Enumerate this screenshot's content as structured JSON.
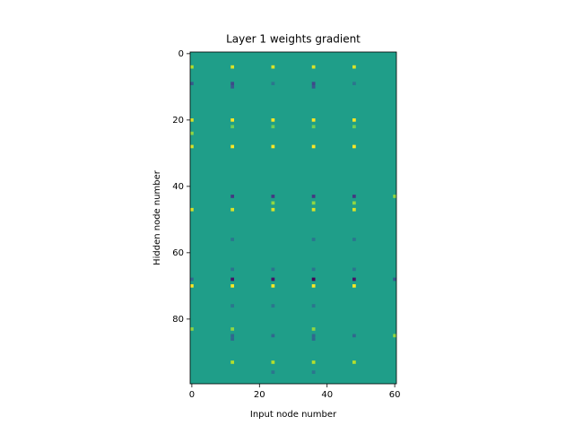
{
  "chart_data": {
    "type": "heatmap",
    "title": "Layer 1 weights gradient",
    "x_label": "Input node number",
    "y_label": "Hidden node number",
    "colormap": "viridis",
    "clim": [
      -1,
      0.8
    ],
    "xlim": [
      -0.5,
      60.5
    ],
    "ylim": [
      99.5,
      -0.5
    ],
    "xticks": [
      0,
      20,
      40,
      60
    ],
    "yticks": [
      0,
      20,
      40,
      60,
      80
    ],
    "fill_value": 0,
    "cells": [
      [
        4,
        0,
        0.6
      ],
      [
        4,
        12,
        0.7
      ],
      [
        4,
        24,
        0.7
      ],
      [
        4,
        36,
        0.7
      ],
      [
        4,
        48,
        0.7
      ],
      [
        9,
        0,
        -0.5
      ],
      [
        9,
        12,
        -0.6
      ],
      [
        9,
        24,
        -0.3
      ],
      [
        9,
        36,
        -0.6
      ],
      [
        9,
        48,
        -0.3
      ],
      [
        10,
        12,
        -0.5
      ],
      [
        10,
        36,
        -0.5
      ],
      [
        20,
        0,
        0.7
      ],
      [
        20,
        12,
        0.8
      ],
      [
        20,
        24,
        0.8
      ],
      [
        20,
        36,
        0.8
      ],
      [
        20,
        48,
        0.8
      ],
      [
        22,
        12,
        0.4
      ],
      [
        22,
        24,
        0.4
      ],
      [
        22,
        36,
        0.4
      ],
      [
        22,
        48,
        0.4
      ],
      [
        24,
        0,
        0.5
      ],
      [
        28,
        0,
        0.7
      ],
      [
        28,
        12,
        0.8
      ],
      [
        28,
        24,
        0.8
      ],
      [
        28,
        36,
        0.8
      ],
      [
        28,
        48,
        0.8
      ],
      [
        43,
        12,
        -0.7
      ],
      [
        43,
        24,
        -0.7
      ],
      [
        43,
        36,
        -0.7
      ],
      [
        43,
        48,
        -0.7
      ],
      [
        43,
        60,
        0.5
      ],
      [
        45,
        24,
        0.5
      ],
      [
        45,
        36,
        0.5
      ],
      [
        45,
        48,
        0.5
      ],
      [
        47,
        0,
        0.7
      ],
      [
        47,
        12,
        0.7
      ],
      [
        47,
        24,
        0.7
      ],
      [
        47,
        36,
        0.7
      ],
      [
        47,
        48,
        0.7
      ],
      [
        56,
        12,
        -0.3
      ],
      [
        56,
        36,
        -0.3
      ],
      [
        56,
        48,
        -0.3
      ],
      [
        65,
        12,
        -0.3
      ],
      [
        65,
        24,
        -0.3
      ],
      [
        65,
        36,
        -0.3
      ],
      [
        65,
        48,
        -0.3
      ],
      [
        68,
        0,
        -0.4
      ],
      [
        68,
        12,
        -0.9
      ],
      [
        68,
        24,
        -0.9
      ],
      [
        68,
        36,
        -1
      ],
      [
        68,
        48,
        -0.9
      ],
      [
        68,
        60,
        -0.5
      ],
      [
        70,
        0,
        0.8
      ],
      [
        70,
        12,
        0.8
      ],
      [
        70,
        24,
        0.8
      ],
      [
        70,
        36,
        0.8
      ],
      [
        70,
        48,
        0.8
      ],
      [
        76,
        12,
        -0.3
      ],
      [
        76,
        24,
        -0.3
      ],
      [
        76,
        36,
        -0.3
      ],
      [
        83,
        0,
        0.5
      ],
      [
        83,
        12,
        0.5
      ],
      [
        83,
        36,
        0.5
      ],
      [
        85,
        12,
        -0.4
      ],
      [
        85,
        24,
        -0.4
      ],
      [
        85,
        36,
        -0.4
      ],
      [
        85,
        48,
        -0.4
      ],
      [
        85,
        60,
        0.5
      ],
      [
        86,
        12,
        -0.4
      ],
      [
        86,
        36,
        -0.4
      ],
      [
        93,
        12,
        0.6
      ],
      [
        93,
        24,
        0.6
      ],
      [
        93,
        36,
        0.6
      ],
      [
        93,
        48,
        0.6
      ],
      [
        96,
        24,
        -0.3
      ],
      [
        96,
        36,
        -0.3
      ]
    ]
  }
}
